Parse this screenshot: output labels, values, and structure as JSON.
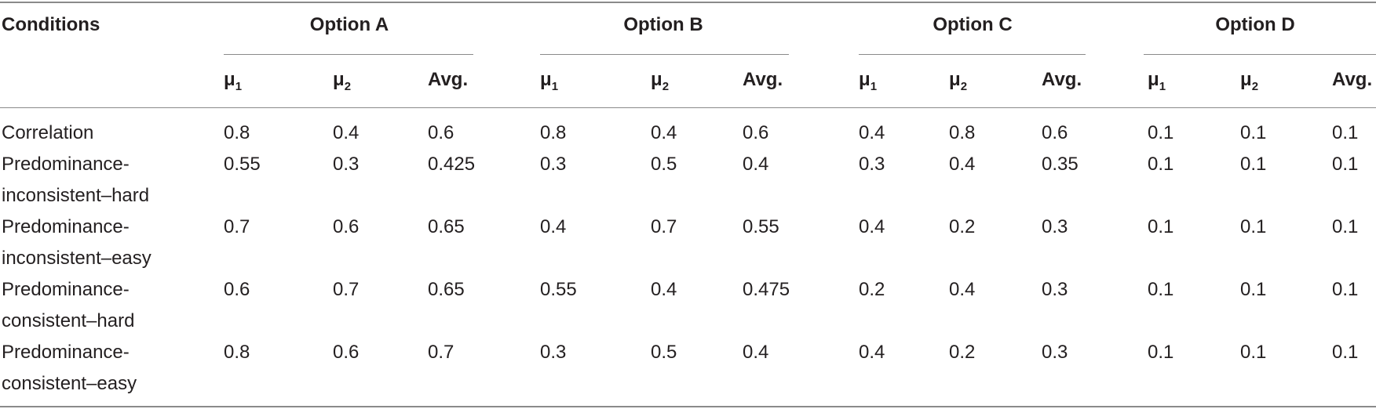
{
  "table": {
    "header": {
      "conditions": "Conditions",
      "groups": [
        {
          "title": "Option A",
          "subs": [
            {
              "sym": "μ",
              "idx": "1"
            },
            {
              "sym": "μ",
              "idx": "2"
            },
            {
              "sym": "Avg.",
              "idx": ""
            }
          ]
        },
        {
          "title": "Option B",
          "subs": [
            {
              "sym": "μ",
              "idx": "1"
            },
            {
              "sym": "μ",
              "idx": "2"
            },
            {
              "sym": "Avg.",
              "idx": ""
            }
          ]
        },
        {
          "title": "Option C",
          "subs": [
            {
              "sym": "μ",
              "idx": "1"
            },
            {
              "sym": "μ",
              "idx": "2"
            },
            {
              "sym": "Avg.",
              "idx": ""
            }
          ]
        },
        {
          "title": "Option D",
          "subs": [
            {
              "sym": "μ",
              "idx": "1"
            },
            {
              "sym": "μ",
              "idx": "2"
            },
            {
              "sym": "Avg.",
              "idx": ""
            }
          ]
        }
      ]
    },
    "rows": [
      {
        "condition": [
          "Correlation"
        ],
        "values": [
          "0.8",
          "0.4",
          "0.6",
          "0.8",
          "0.4",
          "0.6",
          "0.4",
          "0.8",
          "0.6",
          "0.1",
          "0.1",
          "0.1"
        ]
      },
      {
        "condition": [
          "Predominance-",
          "inconsistent–hard"
        ],
        "values": [
          "0.55",
          "0.3",
          "0.425",
          "0.3",
          "0.5",
          "0.4",
          "0.3",
          "0.4",
          "0.35",
          "0.1",
          "0.1",
          "0.1"
        ]
      },
      {
        "condition": [
          "Predominance-",
          "inconsistent–easy"
        ],
        "values": [
          "0.7",
          "0.6",
          "0.65",
          "0.4",
          "0.7",
          "0.55",
          "0.4",
          "0.2",
          "0.3",
          "0.1",
          "0.1",
          "0.1"
        ]
      },
      {
        "condition": [
          "Predominance-",
          "consistent–hard"
        ],
        "values": [
          "0.6",
          "0.7",
          "0.65",
          "0.55",
          "0.4",
          "0.475",
          "0.2",
          "0.4",
          "0.3",
          "0.1",
          "0.1",
          "0.1"
        ]
      },
      {
        "condition": [
          "Predominance-",
          "consistent–easy"
        ],
        "values": [
          "0.8",
          "0.6",
          "0.7",
          "0.3",
          "0.5",
          "0.4",
          "0.4",
          "0.2",
          "0.3",
          "0.1",
          "0.1",
          "0.1"
        ]
      }
    ]
  }
}
